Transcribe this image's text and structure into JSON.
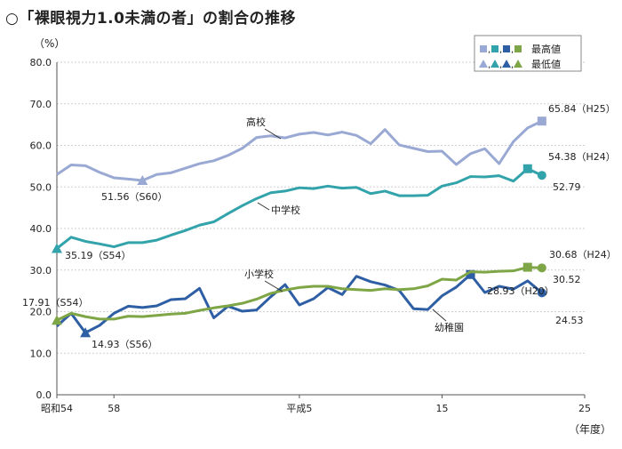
{
  "title": "○「裸眼視力1.0未満の者」の割合の推移",
  "y_unit": "（%）",
  "x_unit": "（年度）",
  "legend": {
    "max_label": "最高値",
    "min_label": "最低値",
    "sep": ","
  },
  "colors": {
    "high": "#9aa9d4",
    "middle": "#33a3ab",
    "elementary": "#2e5ea3",
    "kinder": "#7ea646",
    "grid": "#cfcfcf",
    "axis": "#555555"
  },
  "chart_data": {
    "type": "line",
    "x": [
      54,
      55,
      56,
      57,
      58,
      59,
      60,
      61,
      62,
      63,
      64,
      65,
      66,
      67,
      68,
      69,
      70,
      71,
      72,
      73,
      74,
      75,
      76,
      77,
      78,
      79,
      80,
      81,
      82,
      83,
      84,
      85,
      86,
      87,
      88,
      89,
      90
    ],
    "xtick_labels": [
      {
        "x": 54,
        "label": "昭和54"
      },
      {
        "x": 58,
        "label": "58"
      },
      {
        "x": 71,
        "label": "平成5"
      },
      {
        "x": 81,
        "label": "15"
      },
      {
        "x": 91,
        "label": "25"
      }
    ],
    "ylim": [
      0,
      80
    ],
    "yticks": [
      "0.0",
      "10.0",
      "20.0",
      "30.0",
      "40.0",
      "50.0",
      "60.0",
      "70.0",
      "80.0"
    ],
    "grid": true,
    "legend_position": "top-right",
    "series": [
      {
        "key": "high",
        "name": "高校",
        "values": [
          53.0,
          55.3,
          55.1,
          53.5,
          52.2,
          51.9,
          51.56,
          53.0,
          53.4,
          54.5,
          55.6,
          56.3,
          57.6,
          59.3,
          61.9,
          62.3,
          61.8,
          62.7,
          63.1,
          62.5,
          63.2,
          62.4,
          60.4,
          63.8,
          60.1,
          59.3,
          58.5,
          58.6,
          55.4,
          58.0,
          59.2,
          55.6,
          60.9,
          64.2,
          65.84,
          null,
          null
        ],
        "max_index": 34,
        "min_index": 6
      },
      {
        "key": "middle",
        "name": "中学校",
        "values": [
          35.19,
          37.9,
          36.9,
          36.3,
          35.6,
          36.6,
          36.6,
          37.2,
          38.4,
          39.5,
          40.8,
          41.6,
          43.6,
          45.5,
          47.2,
          48.6,
          49.0,
          49.8,
          49.6,
          50.2,
          49.7,
          49.9,
          48.4,
          49.0,
          47.9,
          47.9,
          48.0,
          50.2,
          51.0,
          52.5,
          52.4,
          52.7,
          51.4,
          54.38,
          52.79,
          null,
          null
        ],
        "max_index": 33,
        "min_index": 0
      },
      {
        "key": "elementary",
        "name": "小学校",
        "values": [
          16.5,
          19.6,
          14.93,
          16.7,
          19.6,
          21.3,
          21.0,
          21.4,
          22.9,
          23.1,
          25.6,
          18.5,
          21.3,
          20.1,
          20.4,
          23.6,
          26.5,
          21.6,
          23.1,
          25.8,
          24.1,
          28.5,
          27.2,
          26.4,
          25.1,
          20.7,
          20.5,
          23.8,
          25.9,
          28.93,
          24.6,
          26.1,
          25.4,
          27.4,
          24.53,
          null,
          null
        ],
        "max_index": 29,
        "min_index": 2
      },
      {
        "key": "kinder",
        "name": "幼稚園",
        "values": [
          17.91,
          19.6,
          18.8,
          18.2,
          18.2,
          18.9,
          18.8,
          19.1,
          19.4,
          19.6,
          20.3,
          20.9,
          21.4,
          22.0,
          23.0,
          24.4,
          25.2,
          25.8,
          26.1,
          26.1,
          25.5,
          25.3,
          25.1,
          25.5,
          25.3,
          25.5,
          26.2,
          27.8,
          27.6,
          29.6,
          29.5,
          29.7,
          29.8,
          30.68,
          30.52,
          null,
          null
        ],
        "max_index": 33,
        "min_index": 0
      }
    ],
    "annotations": [
      {
        "series": "high",
        "text": "65.84（H25）"
      },
      {
        "series": "high",
        "text": "51.56（S60）"
      },
      {
        "series": "middle",
        "text": "54.38（H24）"
      },
      {
        "series": "middle",
        "text": "52.79"
      },
      {
        "series": "middle",
        "text": "35.19（S54）"
      },
      {
        "series": "elementary",
        "text": "28.93（H20）"
      },
      {
        "series": "elementary",
        "text": "24.53"
      },
      {
        "series": "elementary",
        "text": "14.93（S56）"
      },
      {
        "series": "kinder",
        "text": "30.68（H24）"
      },
      {
        "series": "kinder",
        "text": "30.52"
      },
      {
        "series": "kinder",
        "text": "17.91（S54）"
      }
    ]
  }
}
